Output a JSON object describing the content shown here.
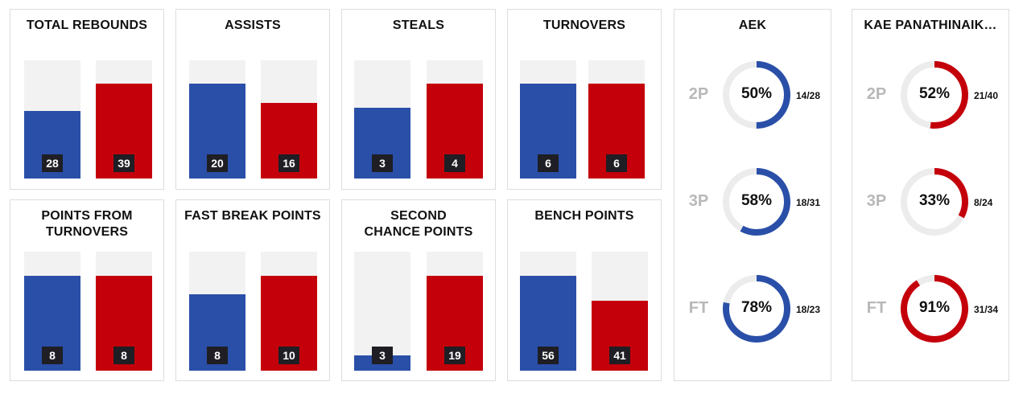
{
  "colors": {
    "home": "#2a4fa8",
    "away": "#c4000b",
    "track": "#f2f2f2",
    "ring_track": "#ececec",
    "label_bg": "#1e1e24"
  },
  "chart_data": [
    {
      "type": "bar",
      "title": "TOTAL REBOUNDS",
      "values": [
        28,
        39
      ]
    },
    {
      "type": "bar",
      "title": "ASSISTS",
      "values": [
        20,
        16
      ]
    },
    {
      "type": "bar",
      "title": "STEALS",
      "values": [
        3,
        4
      ]
    },
    {
      "type": "bar",
      "title": "TURNOVERS",
      "values": [
        6,
        6
      ]
    },
    {
      "type": "bar",
      "title": "POINTS FROM TURNOVERS",
      "values": [
        8,
        8
      ]
    },
    {
      "type": "bar",
      "title": "FAST BREAK POINTS",
      "values": [
        8,
        10
      ]
    },
    {
      "type": "bar",
      "title": "SECOND CHANCE POINTS",
      "values": [
        3,
        19
      ]
    },
    {
      "type": "bar",
      "title": "BENCH POINTS",
      "values": [
        56,
        41
      ]
    },
    {
      "type": "pie",
      "title": "AEK",
      "rows": [
        {
          "label": "2P",
          "percent": 50,
          "fraction": "14/28"
        },
        {
          "label": "3P",
          "percent": 58,
          "fraction": "18/31"
        },
        {
          "label": "FT",
          "percent": 78,
          "fraction": "18/23"
        }
      ]
    },
    {
      "type": "pie",
      "title": "KAE PANATHINAIK…",
      "rows": [
        {
          "label": "2P",
          "percent": 52,
          "fraction": "21/40"
        },
        {
          "label": "3P",
          "percent": 33,
          "fraction": "8/24"
        },
        {
          "label": "FT",
          "percent": 91,
          "fraction": "31/34"
        }
      ]
    }
  ]
}
